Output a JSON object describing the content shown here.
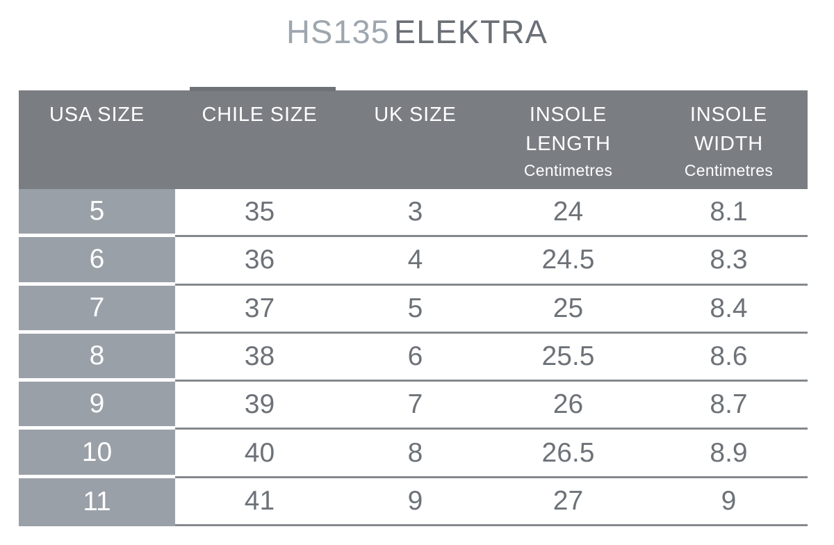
{
  "title": {
    "model": "HS135",
    "name": "ELEKTRA"
  },
  "colors": {
    "header_bg": "#7a7e83",
    "header_tab": "#6f7377",
    "row_label_bg": "#9aa0a8",
    "header_text": "#ffffff",
    "cell_text": "#6d7278",
    "row_line": "#84888d",
    "title_model": "#9ea6ae",
    "title_name": "#6b7077",
    "page_bg": "#ffffff"
  },
  "table": {
    "columns": [
      {
        "id": "usa-size",
        "lines": [
          "USA SIZE"
        ],
        "sub": ""
      },
      {
        "id": "chile-size",
        "lines": [
          "CHILE SIZE"
        ],
        "sub": ""
      },
      {
        "id": "uk-size",
        "lines": [
          "UK SIZE"
        ],
        "sub": ""
      },
      {
        "id": "insole-length",
        "lines": [
          "INSOLE",
          "LENGTH"
        ],
        "sub": "Centimetres"
      },
      {
        "id": "insole-width",
        "lines": [
          "INSOLE",
          "WIDTH"
        ],
        "sub": "Centimetres"
      }
    ],
    "rows": [
      [
        "5",
        "35",
        "3",
        "24",
        "8.1"
      ],
      [
        "6",
        "36",
        "4",
        "24.5",
        "8.3"
      ],
      [
        "7",
        "37",
        "5",
        "25",
        "8.4"
      ],
      [
        "8",
        "38",
        "6",
        "25.5",
        "8.6"
      ],
      [
        "9",
        "39",
        "7",
        "26",
        "8.7"
      ],
      [
        "10",
        "40",
        "8",
        "26.5",
        "8.9"
      ],
      [
        "11",
        "41",
        "9",
        "27",
        "9"
      ]
    ]
  }
}
